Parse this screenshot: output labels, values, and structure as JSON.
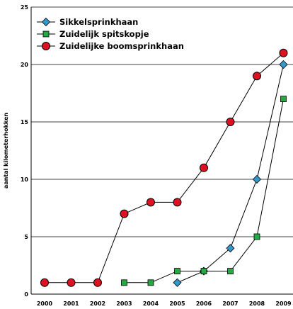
{
  "chart_data": {
    "type": "line",
    "title": "",
    "xlabel": "",
    "ylabel": "aantal kilometerhokken",
    "ylim": [
      0,
      25
    ],
    "yticks": [
      0,
      5,
      10,
      15,
      20,
      25
    ],
    "categories": [
      "2000",
      "2001",
      "2002",
      "2003",
      "2004",
      "2005",
      "2006",
      "2007",
      "2008",
      "2009"
    ],
    "grid": "horizontal",
    "legend_position": "top-left",
    "series": [
      {
        "name": "Sikkelsprinkhaan",
        "marker": "diamond",
        "color": "#3399cc",
        "points": [
          {
            "x": "2005",
            "y": 1
          },
          {
            "x": "2006",
            "y": 2
          },
          {
            "x": "2007",
            "y": 4
          },
          {
            "x": "2008",
            "y": 10
          },
          {
            "x": "2009",
            "y": 20
          }
        ]
      },
      {
        "name": "Zuidelijk spitskopje",
        "marker": "square",
        "color": "#22aa44",
        "points": [
          {
            "x": "2003",
            "y": 1
          },
          {
            "x": "2004",
            "y": 1
          },
          {
            "x": "2005",
            "y": 2
          },
          {
            "x": "2006",
            "y": 2
          },
          {
            "x": "2007",
            "y": 2
          },
          {
            "x": "2008",
            "y": 5
          },
          {
            "x": "2009",
            "y": 17
          }
        ]
      },
      {
        "name": "Zuidelijke boomsprinkhaan",
        "marker": "circle",
        "color": "#dd1122",
        "points": [
          {
            "x": "2000",
            "y": 1
          },
          {
            "x": "2001",
            "y": 1
          },
          {
            "x": "2002",
            "y": 1
          },
          {
            "x": "2003",
            "y": 7
          },
          {
            "x": "2004",
            "y": 8
          },
          {
            "x": "2005",
            "y": 8
          },
          {
            "x": "2006",
            "y": 11
          },
          {
            "x": "2007",
            "y": 15
          },
          {
            "x": "2008",
            "y": 19
          },
          {
            "x": "2009",
            "y": 21
          }
        ]
      }
    ]
  }
}
